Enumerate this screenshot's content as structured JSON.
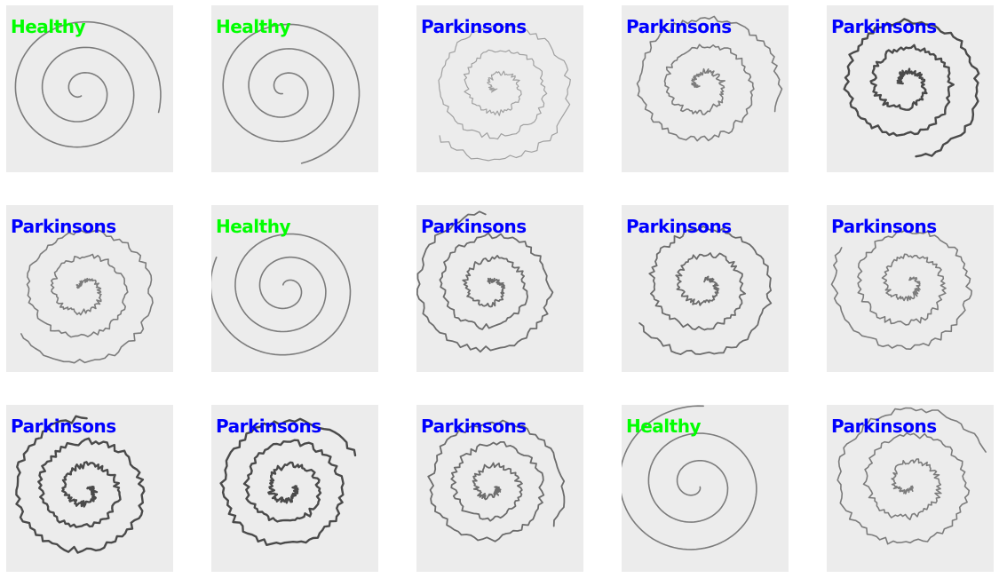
{
  "colors": {
    "healthy": "#00ff00",
    "parkinsons": "#0000ff",
    "paper": "#ececec",
    "ink": "#6a6a6a"
  },
  "tiles": [
    {
      "label": "Healthy",
      "cls": "healthy",
      "ink": "light"
    },
    {
      "label": "Healthy",
      "cls": "healthy",
      "ink": "light"
    },
    {
      "label": "Parkinsons",
      "cls": "parkinsons",
      "ink": "faint"
    },
    {
      "label": "Parkinsons",
      "cls": "parkinsons",
      "ink": "light"
    },
    {
      "label": "Parkinsons",
      "cls": "parkinsons",
      "ink": "dark"
    },
    {
      "label": "Parkinsons",
      "cls": "parkinsons",
      "ink": "light"
    },
    {
      "label": "Healthy",
      "cls": "healthy",
      "ink": "light"
    },
    {
      "label": "Parkinsons",
      "cls": "parkinsons",
      "ink": "medium"
    },
    {
      "label": "Parkinsons",
      "cls": "parkinsons",
      "ink": "medium"
    },
    {
      "label": "Parkinsons",
      "cls": "parkinsons",
      "ink": "light"
    },
    {
      "label": "Parkinsons",
      "cls": "parkinsons",
      "ink": "dark"
    },
    {
      "label": "Parkinsons",
      "cls": "parkinsons",
      "ink": "dark"
    },
    {
      "label": "Parkinsons",
      "cls": "parkinsons",
      "ink": "medium"
    },
    {
      "label": "Healthy",
      "cls": "healthy",
      "ink": "light"
    },
    {
      "label": "Parkinsons",
      "cls": "parkinsons",
      "ink": "light"
    }
  ]
}
